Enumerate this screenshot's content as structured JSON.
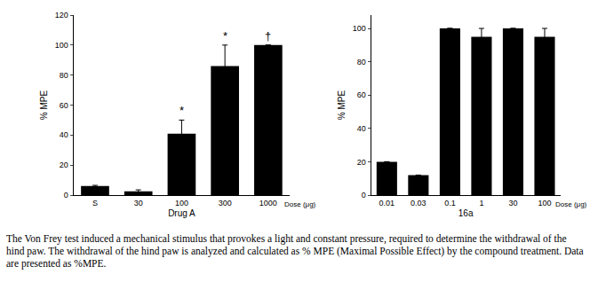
{
  "chart_data": [
    {
      "type": "bar",
      "x_label": "Drug A",
      "y_label": "% MPE",
      "categories": [
        "S",
        "30",
        "100",
        "300",
        "1000"
      ],
      "values": [
        6,
        2.5,
        41,
        86,
        100
      ],
      "errors": [
        0.5,
        1,
        9,
        14,
        0
      ],
      "color": "#000000",
      "ylim": [
        0,
        120
      ],
      "yticks": [
        0,
        20,
        40,
        60,
        80,
        100,
        120
      ],
      "grid": false,
      "annotations": [
        {
          "category": "100",
          "text": "*"
        },
        {
          "category": "300",
          "text": "*"
        },
        {
          "category": "1000",
          "text": "†"
        },
        {
          "text": "Dose (μg)"
        }
      ]
    },
    {
      "type": "bar",
      "x_label": "16a",
      "y_label": "% MPE",
      "categories": [
        "0.01",
        "0.03",
        "0.1",
        "1",
        "30",
        "100"
      ],
      "values": [
        20,
        12,
        100,
        95,
        100,
        95
      ],
      "errors": [
        0,
        0,
        0,
        5,
        0,
        5
      ],
      "color": "#000000",
      "ylim": [
        0,
        108
      ],
      "yticks": [
        0,
        20,
        40,
        60,
        80,
        100
      ],
      "grid": false,
      "annotations": [
        {
          "text": "Dose (μg)"
        }
      ]
    }
  ],
  "caption": "The Von Frey test induced a mechanical stimulus that provokes a light and constant pressure, required to determine the withdrawal of the hind paw. The withdrawal of the hind paw is analyzed and calculated as % MPE (Maximal Possible Effect) by the compound treatment. Data are presented as %MPE."
}
